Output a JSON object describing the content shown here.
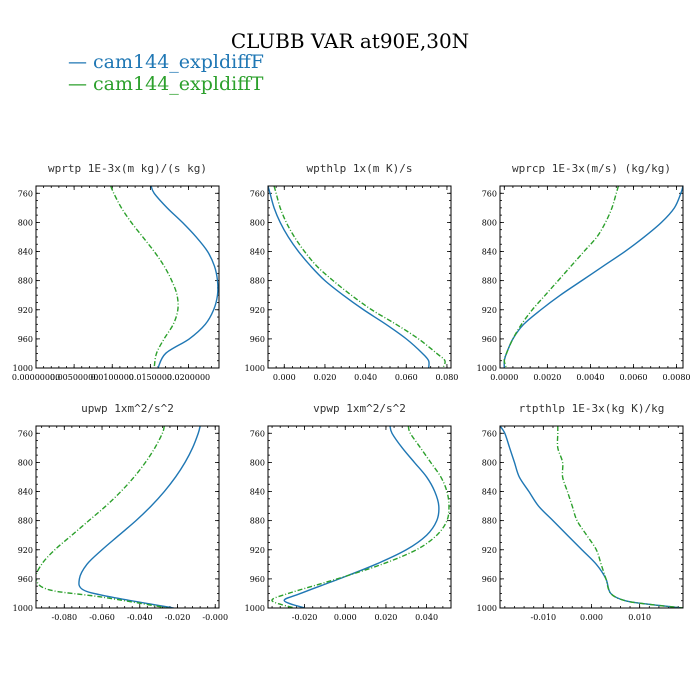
{
  "title": "CLUBB VAR at90E,30N",
  "legend": [
    {
      "label": "cam144_expldiffF",
      "color": "#1f77b4"
    },
    {
      "label": "cam144_expldiffT",
      "color": "#2ca02c"
    }
  ],
  "chart_data": [
    {
      "type": "line",
      "title": "wprtp  1E-3x(m kg)/(s kg)",
      "xlim": [
        0.0,
        0.024
      ],
      "xticks": [
        0.0,
        0.005,
        0.01,
        0.015,
        0.02
      ],
      "xtick_labels": [
        "0.00000000",
        "0.00500000",
        "0.0100000",
        "0.0150000",
        "0.0200000"
      ],
      "ylim": [
        1000,
        750
      ],
      "yticks": [
        760,
        800,
        840,
        880,
        920,
        960,
        1000
      ],
      "y": [
        750,
        760,
        780,
        800,
        820,
        840,
        860,
        880,
        900,
        920,
        940,
        960,
        980,
        1000
      ],
      "series": [
        {
          "name": "cam144_expldiffF",
          "values": [
            0.0151,
            0.0155,
            0.0172,
            0.0192,
            0.021,
            0.0225,
            0.0234,
            0.0238,
            0.0238,
            0.0233,
            0.0222,
            0.0201,
            0.017,
            0.016
          ]
        },
        {
          "name": "cam144_expldiffT",
          "values": [
            0.0098,
            0.0102,
            0.0112,
            0.0125,
            0.014,
            0.0155,
            0.0168,
            0.0178,
            0.0185,
            0.0186,
            0.018,
            0.0168,
            0.0158,
            0.0155
          ]
        }
      ]
    },
    {
      "type": "line",
      "title": "wpthlp  1x(m K)/s",
      "xlim": [
        -0.008,
        0.082
      ],
      "xticks": [
        0.0,
        0.02,
        0.04,
        0.06,
        0.08
      ],
      "xtick_labels": [
        "0.000",
        "0.020",
        "0.040",
        "0.060",
        "0.080"
      ],
      "ylim": [
        1000,
        750
      ],
      "yticks": [
        760,
        800,
        840,
        880,
        920,
        960,
        1000
      ],
      "y": [
        750,
        760,
        780,
        800,
        820,
        840,
        860,
        880,
        900,
        920,
        940,
        960,
        980,
        990,
        1000
      ],
      "series": [
        {
          "name": "cam144_expldiffF",
          "values": [
            -0.008,
            -0.007,
            -0.005,
            -0.002,
            0.002,
            0.007,
            0.013,
            0.02,
            0.029,
            0.039,
            0.05,
            0.06,
            0.068,
            0.071,
            0.071
          ]
        },
        {
          "name": "cam144_expldiffT",
          "values": [
            -0.005,
            -0.004,
            -0.002,
            0.001,
            0.005,
            0.01,
            0.016,
            0.024,
            0.033,
            0.043,
            0.055,
            0.066,
            0.075,
            0.079,
            0.078
          ]
        }
      ]
    },
    {
      "type": "line",
      "title": "wprcp  1E-3x(m/s) (kg/kg)",
      "xlim": [
        -0.0002,
        0.0083
      ],
      "xticks": [
        0.0,
        0.002,
        0.004,
        0.006,
        0.008
      ],
      "xtick_labels": [
        "0.0000",
        "0.0020",
        "0.0040",
        "0.0060",
        "0.0080"
      ],
      "ylim": [
        1000,
        750
      ],
      "yticks": [
        760,
        800,
        840,
        880,
        920,
        960,
        1000
      ],
      "y": [
        750,
        760,
        780,
        800,
        820,
        840,
        860,
        880,
        900,
        920,
        940,
        960,
        980,
        990,
        1000
      ],
      "series": [
        {
          "name": "cam144_expldiffF",
          "values": [
            0.0083,
            0.0082,
            0.0079,
            0.0073,
            0.0065,
            0.0056,
            0.0046,
            0.0036,
            0.0026,
            0.0017,
            0.0009,
            0.0004,
            0.0001,
            0.0,
            0.0
          ]
        },
        {
          "name": "cam144_expldiffT",
          "values": [
            0.0053,
            0.0052,
            0.005,
            0.0047,
            0.0043,
            0.0037,
            0.0031,
            0.0025,
            0.0019,
            0.0013,
            0.0008,
            0.0004,
            0.0001,
            0.0,
            0.0001
          ]
        }
      ]
    },
    {
      "type": "line",
      "title": "upwp  1xm^2/s^2",
      "xlim": [
        -0.095,
        0.002
      ],
      "xticks": [
        -0.08,
        -0.06,
        -0.04,
        -0.02,
        0.0
      ],
      "xtick_labels": [
        "-0.080",
        "-0.060",
        "-0.040",
        "-0.020",
        "-0.000"
      ],
      "ylim": [
        1000,
        750
      ],
      "yticks": [
        760,
        800,
        840,
        880,
        920,
        960,
        1000
      ],
      "y": [
        750,
        760,
        780,
        800,
        820,
        840,
        860,
        880,
        900,
        920,
        940,
        960,
        975,
        985,
        1000
      ],
      "series": [
        {
          "name": "cam144_expldiffF",
          "values": [
            -0.008,
            -0.009,
            -0.012,
            -0.016,
            -0.021,
            -0.027,
            -0.034,
            -0.042,
            -0.051,
            -0.06,
            -0.068,
            -0.072,
            -0.07,
            -0.055,
            -0.022
          ]
        },
        {
          "name": "cam144_expldiffT",
          "values": [
            -0.027,
            -0.028,
            -0.032,
            -0.037,
            -0.043,
            -0.05,
            -0.058,
            -0.067,
            -0.076,
            -0.085,
            -0.092,
            -0.095,
            -0.088,
            -0.06,
            -0.025
          ]
        }
      ]
    },
    {
      "type": "line",
      "title": "vpwp  1xm^2/s^2",
      "xlim": [
        -0.038,
        0.052
      ],
      "xticks": [
        -0.02,
        0.0,
        0.02,
        0.04
      ],
      "xtick_labels": [
        "-0.020",
        "0.000",
        "0.020",
        "0.040"
      ],
      "ylim": [
        1000,
        750
      ],
      "yticks": [
        760,
        800,
        840,
        880,
        920,
        960,
        1000
      ],
      "y": [
        750,
        760,
        780,
        800,
        820,
        840,
        860,
        880,
        900,
        920,
        940,
        960,
        980,
        990,
        1000
      ],
      "series": [
        {
          "name": "cam144_expldiffF",
          "values": [
            0.022,
            0.023,
            0.028,
            0.034,
            0.04,
            0.044,
            0.046,
            0.045,
            0.04,
            0.03,
            0.015,
            -0.003,
            -0.022,
            -0.03,
            -0.02
          ]
        },
        {
          "name": "cam144_expldiffT",
          "values": [
            0.031,
            0.032,
            0.037,
            0.042,
            0.047,
            0.05,
            0.051,
            0.05,
            0.045,
            0.035,
            0.018,
            -0.004,
            -0.028,
            -0.036,
            -0.025
          ]
        }
      ]
    },
    {
      "type": "line",
      "title": "rtpthlp  1E-3x(kg K)/kg",
      "xlim": [
        -0.019,
        0.019
      ],
      "xticks": [
        -0.01,
        0.0,
        0.01
      ],
      "xtick_labels": [
        "-0.010",
        "0.000",
        "0.010"
      ],
      "ylim": [
        1000,
        750
      ],
      "yticks": [
        760,
        800,
        840,
        880,
        920,
        960,
        1000
      ],
      "y": [
        750,
        760,
        780,
        800,
        820,
        840,
        860,
        880,
        900,
        920,
        940,
        960,
        980,
        990,
        995,
        1000
      ],
      "series": [
        {
          "name": "cam144_expldiffF",
          "values": [
            -0.019,
            -0.018,
            -0.017,
            -0.016,
            -0.015,
            -0.013,
            -0.011,
            -0.008,
            -0.005,
            -0.002,
            0.001,
            0.003,
            0.004,
            0.007,
            0.012,
            0.019
          ]
        },
        {
          "name": "cam144_expldiffT",
          "values": [
            -0.007,
            -0.007,
            -0.007,
            -0.006,
            -0.006,
            -0.005,
            -0.004,
            -0.003,
            -0.001,
            0.001,
            0.002,
            0.003,
            0.004,
            0.007,
            0.012,
            0.019
          ]
        }
      ]
    }
  ]
}
